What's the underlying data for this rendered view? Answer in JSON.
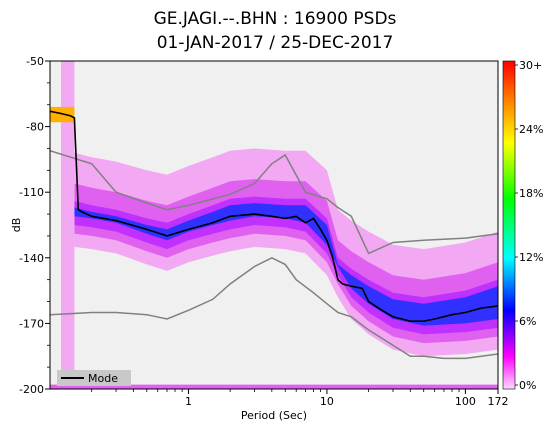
{
  "title_line1": "GE.JAGI.--.BHN : 16900 PSDs",
  "title_line2": "01-JAN-2017 / 25-DEC-2017",
  "chart_data": {
    "type": "heatmap",
    "xlabel": "Period (Sec)",
    "ylabel": "dB",
    "x_scale": "log",
    "xlim": [
      0.1,
      172
    ],
    "ylim": [
      -200,
      -50
    ],
    "x_ticks": [
      1,
      10,
      100,
      172
    ],
    "x_tick_labels": [
      "1",
      "10",
      "100",
      "172"
    ],
    "y_ticks": [
      -50,
      -80,
      -110,
      -140,
      -170,
      -200
    ],
    "y_tick_labels": [
      "-50",
      "-80",
      "-110",
      "-140",
      "-170",
      "-200"
    ],
    "colorbar": {
      "tick_labels": [
        "30+",
        "24%",
        "18%",
        "12%",
        "6%",
        "0%"
      ],
      "colors": [
        "#ff0000",
        "#ff8000",
        "#ffff00",
        "#00ff00",
        "#00ffff",
        "#0000ff",
        "#ff00ff",
        "#ffffff"
      ]
    },
    "legend": {
      "position": "bottom-left",
      "entries": [
        "Mode"
      ]
    },
    "mode": {
      "name": "Mode",
      "period": [
        0.1,
        0.12,
        0.14,
        0.15,
        0.16,
        0.17,
        0.2,
        0.3,
        0.5,
        0.7,
        1.0,
        1.5,
        2.0,
        3.0,
        4.0,
        5.0,
        6.0,
        7.0,
        8.0,
        9.0,
        10.0,
        11.0,
        12.0,
        13.0,
        15.0,
        18.0,
        20.0,
        25.0,
        30.0,
        40.0,
        50.0,
        60.0,
        80.0,
        100.0,
        130.0,
        172.0
      ],
      "db": [
        -73,
        -74,
        -75,
        -76,
        -118,
        -119,
        -121,
        -123,
        -127,
        -130,
        -127,
        -124,
        -121,
        -120,
        -121,
        -122,
        -121,
        -124,
        -122,
        -127,
        -132,
        -140,
        -150,
        -152,
        -153,
        -154,
        -160,
        -164,
        -167,
        -169,
        -169,
        -168,
        -166,
        -165,
        -163,
        -162
      ]
    },
    "nhnm": {
      "period": [
        0.1,
        0.2,
        0.3,
        0.5,
        0.7,
        1.0,
        1.5,
        2.0,
        3.0,
        4.0,
        5.0,
        6.0,
        8.0,
        10.0,
        12.0,
        15.0,
        20.0,
        30.0,
        40.0,
        50.0,
        70.0,
        100.0,
        172.0
      ],
      "db": [
        -166,
        -165,
        -165,
        -166,
        -168,
        -164,
        -159,
        -152,
        -144,
        -140,
        -143,
        -150,
        -156,
        -161,
        -165,
        -167,
        -173,
        -180,
        -185,
        -185,
        -186,
        -186,
        -184
      ]
    },
    "nlnm_upper": {
      "period": [
        0.1,
        0.2,
        0.3,
        0.5,
        0.7,
        1.0,
        2.0,
        3.0,
        4.0,
        5.0,
        7.0,
        10.0,
        12.0,
        15.0,
        20.0,
        30.0,
        50.0,
        100.0,
        172.0
      ],
      "db": [
        -91,
        -97,
        -110,
        -115,
        -118,
        -116,
        -111,
        -106,
        -97,
        -93,
        -110,
        -113,
        -117,
        -121,
        -138,
        -133,
        -132,
        -131,
        -129
      ]
    },
    "density_band": {
      "period": [
        0.15,
        0.2,
        0.3,
        0.5,
        0.7,
        1.0,
        1.5,
        2.0,
        3.0,
        5.0,
        7.0,
        10.0,
        12.0,
        15.0,
        20.0,
        30.0,
        50.0,
        100.0,
        172.0
      ],
      "db_low": [
        -125,
        -126,
        -128,
        -133,
        -136,
        -132,
        -129,
        -127,
        -125,
        -126,
        -128,
        -138,
        -148,
        -158,
        -165,
        -172,
        -175,
        -174,
        -172
      ],
      "db_high": [
        -114,
        -116,
        -118,
        -122,
        -124,
        -120,
        -116,
        -113,
        -112,
        -113,
        -113,
        -122,
        -140,
        -145,
        -150,
        -156,
        -158,
        -155,
        -150
      ]
    }
  }
}
